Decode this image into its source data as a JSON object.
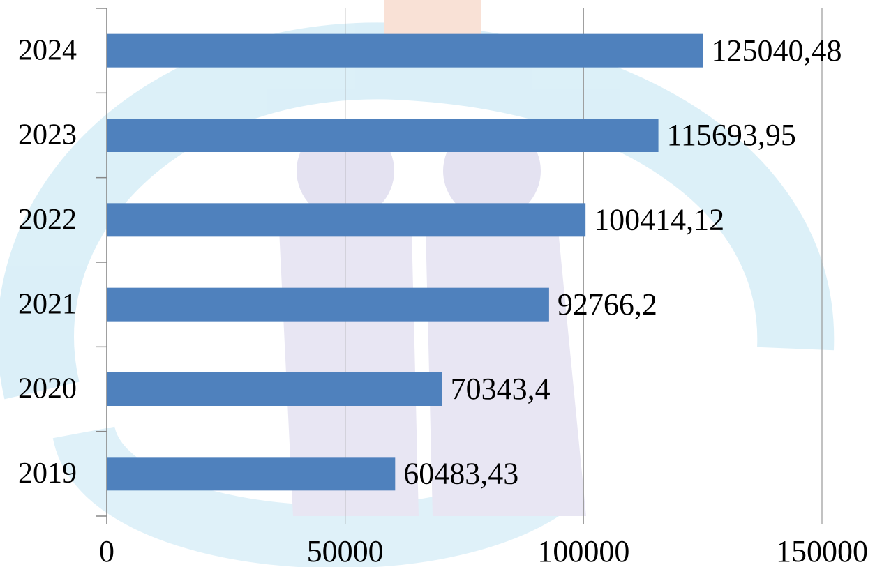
{
  "chart_data": {
    "type": "bar",
    "orientation": "horizontal",
    "categories": [
      "2019",
      "2020",
      "2021",
      "2022",
      "2023",
      "2024"
    ],
    "values": [
      60483.43,
      70343.4,
      92766.2,
      100414.12,
      115693.95,
      125040.48
    ],
    "value_labels": [
      "60483,43",
      "70343,4",
      "92766,2",
      "100414,12",
      "115693,95",
      "125040,48"
    ],
    "color": "#4f81bd",
    "xlim": [
      0,
      150000
    ],
    "xticks": [
      0,
      50000,
      100000,
      150000
    ],
    "grid": true
  }
}
